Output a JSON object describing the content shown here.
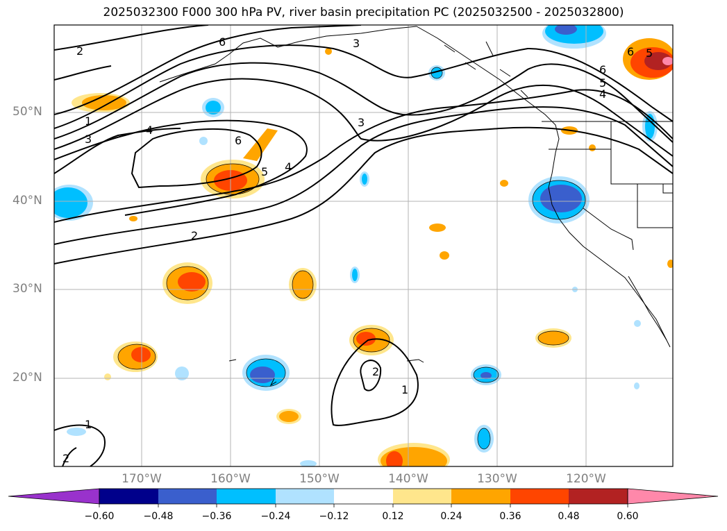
{
  "title": "2025032300 F000 300 hPa PV, river basin precipitation PC (2025032500 - 2025032800)",
  "lat_labels": [
    "50°N",
    "40°N",
    "30°N",
    "20°N"
  ],
  "lon_labels": [
    "170°W",
    "160°W",
    "150°W",
    "140°W",
    "130°W",
    "120°W"
  ],
  "colorbar": {
    "ticks": [
      "−0.60",
      "−0.48",
      "−0.36",
      "−0.24",
      "−0.12",
      "0.12",
      "0.24",
      "0.36",
      "0.48",
      "0.60"
    ],
    "colors": [
      "#9932cc",
      "#00008b",
      "#3a5fcd",
      "#00bfff",
      "#b0e2ff",
      "#ffffff",
      "#ffe68c",
      "#ffa500",
      "#ff4500",
      "#b22222",
      "#ff88aa"
    ]
  },
  "contour_labels": [
    "1",
    "2",
    "3",
    "4",
    "5",
    "6"
  ]
}
